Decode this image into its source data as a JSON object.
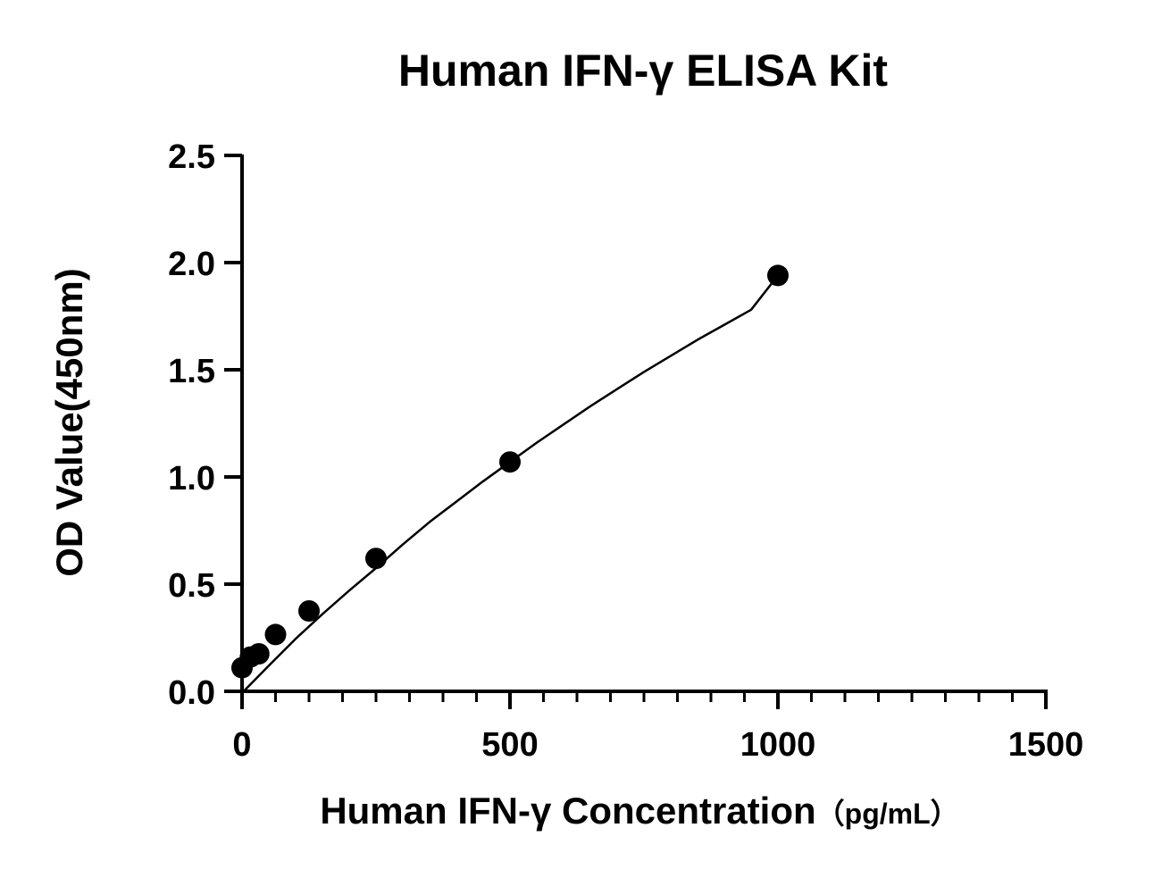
{
  "chart_data": {
    "type": "scatter",
    "title": "Human IFN-γ ELISA Kit",
    "xlabel": "Human IFN-γ Concentration",
    "xlabel_unit": "（pg/mL）",
    "ylabel": "OD Value(450nm)",
    "xlim": [
      0,
      1500
    ],
    "ylim": [
      0,
      2.5
    ],
    "x_major_ticks": [
      0,
      500,
      1000,
      1500
    ],
    "x_tick_labels": [
      "0",
      "500",
      "1000",
      "1500"
    ],
    "x_minor_tick_step": 62.5,
    "y_major_ticks": [
      0,
      0.5,
      1.0,
      1.5,
      2.0,
      2.5
    ],
    "y_tick_labels": [
      "0.0",
      "0.5",
      "1.0",
      "1.5",
      "2.0",
      "2.5"
    ],
    "grid": false,
    "legend": "none",
    "series": [
      {
        "points": [
          {
            "x": 0,
            "y": 0.11
          },
          {
            "x": 15.6,
            "y": 0.16
          },
          {
            "x": 31.25,
            "y": 0.175
          },
          {
            "x": 62.5,
            "y": 0.265
          },
          {
            "x": 125,
            "y": 0.375
          },
          {
            "x": 250,
            "y": 0.62
          },
          {
            "x": 500,
            "y": 1.07
          },
          {
            "x": 1000,
            "y": 1.94
          }
        ],
        "marker": "circle",
        "color": "#000000"
      }
    ],
    "fit_curve": {
      "type": "power",
      "color": "#000000",
      "points": [
        {
          "x": 5,
          "y": 0.005
        },
        {
          "x": 50,
          "y": 0.12
        },
        {
          "x": 100,
          "y": 0.245
        },
        {
          "x": 150,
          "y": 0.36
        },
        {
          "x": 200,
          "y": 0.47
        },
        {
          "x": 250,
          "y": 0.575
        },
        {
          "x": 300,
          "y": 0.685
        },
        {
          "x": 350,
          "y": 0.79
        },
        {
          "x": 400,
          "y": 0.885
        },
        {
          "x": 450,
          "y": 0.98
        },
        {
          "x": 500,
          "y": 1.07
        },
        {
          "x": 550,
          "y": 1.16
        },
        {
          "x": 600,
          "y": 1.245
        },
        {
          "x": 650,
          "y": 1.33
        },
        {
          "x": 700,
          "y": 1.41
        },
        {
          "x": 750,
          "y": 1.49
        },
        {
          "x": 800,
          "y": 1.565
        },
        {
          "x": 850,
          "y": 1.64
        },
        {
          "x": 900,
          "y": 1.71
        },
        {
          "x": 950,
          "y": 1.78
        },
        {
          "x": 1000,
          "y": 1.94
        }
      ]
    }
  }
}
